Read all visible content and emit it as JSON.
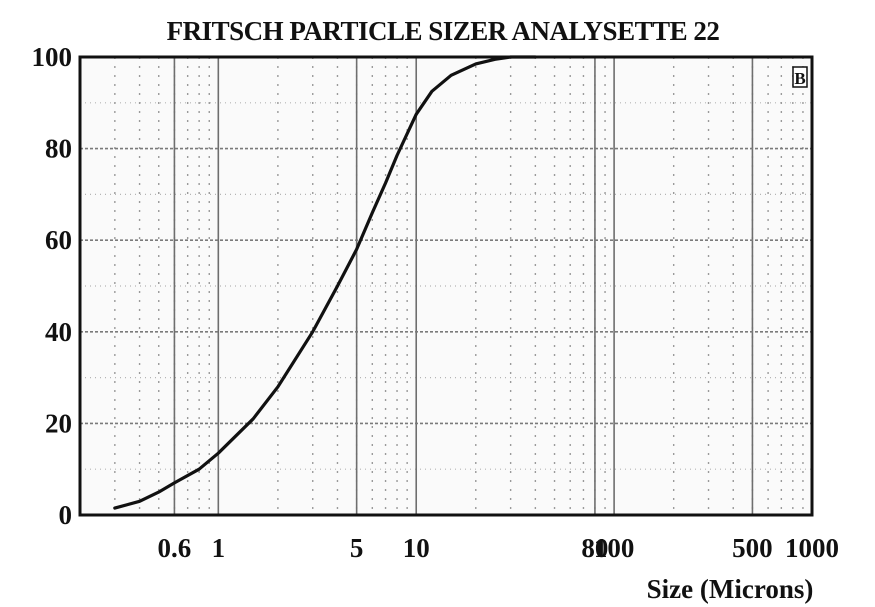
{
  "chart_data": {
    "type": "line",
    "title": "FRITSCH PARTICLE SIZER ANALYSETTE 22",
    "xlabel": "Size (Microns)",
    "ylabel": "",
    "x_scale": "log",
    "xlim": [
      0.2,
      1000
    ],
    "ylim": [
      0,
      100
    ],
    "x_tick_labels": [
      "0.6",
      "1",
      "5",
      "10",
      "80",
      "100",
      "500",
      "1000"
    ],
    "x_tick_values": [
      0.6,
      1,
      5,
      10,
      80,
      100,
      500,
      1000
    ],
    "y_tick_labels": [
      "0",
      "20",
      "40",
      "60",
      "80",
      "100"
    ],
    "y_tick_values": [
      0,
      20,
      40,
      60,
      80,
      100
    ],
    "grid": true,
    "legend_marker": "B",
    "series": [
      {
        "x": [
          0.3,
          0.4,
          0.5,
          0.6,
          0.8,
          1.0,
          1.5,
          2.0,
          3.0,
          4.0,
          5.0,
          6.0,
          7.0,
          8.0,
          10.0,
          12.0,
          15.0,
          20.0,
          25.0,
          30.0,
          40.0
        ],
        "values": [
          1.5,
          3.0,
          5.0,
          7.0,
          10.0,
          13.5,
          21.0,
          28.0,
          40.0,
          50.0,
          58.0,
          66.0,
          72.5,
          78.5,
          87.5,
          92.5,
          96.0,
          98.5,
          99.5,
          100,
          100
        ]
      }
    ]
  }
}
